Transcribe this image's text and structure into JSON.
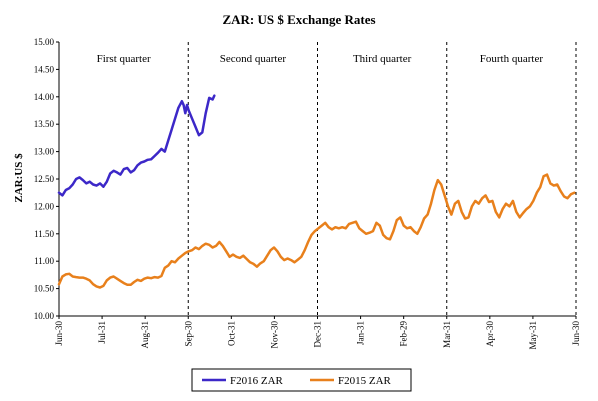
{
  "chart_data": {
    "type": "line",
    "title": "ZAR: US $ Exchange Rates",
    "xlabel": "",
    "ylabel": "ZAR:US $",
    "ylim": [
      10.0,
      15.0
    ],
    "yticks": [
      "10.00",
      "10.50",
      "11.00",
      "11.50",
      "12.00",
      "12.50",
      "13.00",
      "13.50",
      "14.00",
      "14.50",
      "15.00"
    ],
    "xticks": [
      "Jun-30",
      "Jul-31",
      "Aug-31",
      "Sep-30",
      "Oct-31",
      "Nov-30",
      "Dec-31",
      "Jan-31",
      "Feb-29",
      "Mar-31",
      "Apr-30",
      "May-31",
      "Jun-30"
    ],
    "grid": false,
    "legend_position": "bottom-center",
    "quarters": [
      "First quarter",
      "Second quarter",
      "Third quarter",
      "Fourth quarter"
    ],
    "series": [
      {
        "name": "F2016 ZAR",
        "color": "#3c28c8",
        "points": [
          [
            0,
            12.25
          ],
          [
            2,
            12.2
          ],
          [
            4,
            12.3
          ],
          [
            6,
            12.33
          ],
          [
            8,
            12.4
          ],
          [
            10,
            12.5
          ],
          [
            12,
            12.53
          ],
          [
            14,
            12.48
          ],
          [
            16,
            12.42
          ],
          [
            18,
            12.45
          ],
          [
            20,
            12.4
          ],
          [
            22,
            12.38
          ],
          [
            24,
            12.42
          ],
          [
            26,
            12.36
          ],
          [
            28,
            12.45
          ],
          [
            30,
            12.6
          ],
          [
            32,
            12.65
          ],
          [
            34,
            12.62
          ],
          [
            36,
            12.58
          ],
          [
            38,
            12.68
          ],
          [
            40,
            12.7
          ],
          [
            42,
            12.62
          ],
          [
            44,
            12.66
          ],
          [
            46,
            12.75
          ],
          [
            48,
            12.8
          ],
          [
            50,
            12.82
          ],
          [
            52,
            12.85
          ],
          [
            54,
            12.86
          ],
          [
            56,
            12.92
          ],
          [
            58,
            12.98
          ],
          [
            60,
            13.05
          ],
          [
            62,
            13.0
          ],
          [
            64,
            13.2
          ],
          [
            66,
            13.4
          ],
          [
            68,
            13.6
          ],
          [
            70,
            13.8
          ],
          [
            72,
            13.92
          ],
          [
            73,
            13.85
          ],
          [
            74,
            13.7
          ],
          [
            75,
            13.85
          ],
          [
            76,
            13.75
          ],
          [
            78,
            13.6
          ],
          [
            80,
            13.45
          ],
          [
            82,
            13.3
          ],
          [
            84,
            13.35
          ],
          [
            86,
            13.7
          ],
          [
            88,
            13.98
          ],
          [
            90,
            13.95
          ],
          [
            91,
            14.02
          ]
        ]
      },
      {
        "name": "F2015 ZAR",
        "color": "#e8801c",
        "points": [
          [
            0,
            10.58
          ],
          [
            2,
            10.72
          ],
          [
            4,
            10.76
          ],
          [
            6,
            10.77
          ],
          [
            8,
            10.72
          ],
          [
            10,
            10.71
          ],
          [
            12,
            10.7
          ],
          [
            14,
            10.7
          ],
          [
            16,
            10.68
          ],
          [
            18,
            10.65
          ],
          [
            20,
            10.58
          ],
          [
            22,
            10.54
          ],
          [
            24,
            10.52
          ],
          [
            26,
            10.55
          ],
          [
            28,
            10.65
          ],
          [
            30,
            10.7
          ],
          [
            32,
            10.72
          ],
          [
            34,
            10.68
          ],
          [
            36,
            10.64
          ],
          [
            38,
            10.6
          ],
          [
            40,
            10.57
          ],
          [
            42,
            10.57
          ],
          [
            44,
            10.62
          ],
          [
            46,
            10.66
          ],
          [
            48,
            10.64
          ],
          [
            50,
            10.68
          ],
          [
            52,
            10.7
          ],
          [
            54,
            10.69
          ],
          [
            56,
            10.71
          ],
          [
            58,
            10.7
          ],
          [
            60,
            10.73
          ],
          [
            62,
            10.88
          ],
          [
            64,
            10.92
          ],
          [
            66,
            11.0
          ],
          [
            68,
            10.98
          ],
          [
            70,
            11.05
          ],
          [
            72,
            11.1
          ],
          [
            74,
            11.15
          ],
          [
            76,
            11.18
          ],
          [
            78,
            11.2
          ],
          [
            80,
            11.25
          ],
          [
            82,
            11.22
          ],
          [
            84,
            11.28
          ],
          [
            86,
            11.32
          ],
          [
            88,
            11.3
          ],
          [
            90,
            11.25
          ],
          [
            92,
            11.28
          ],
          [
            94,
            11.35
          ],
          [
            96,
            11.28
          ],
          [
            98,
            11.18
          ],
          [
            100,
            11.08
          ],
          [
            102,
            11.12
          ],
          [
            104,
            11.08
          ],
          [
            106,
            11.06
          ],
          [
            108,
            11.1
          ],
          [
            110,
            11.04
          ],
          [
            112,
            10.98
          ],
          [
            114,
            10.95
          ],
          [
            116,
            10.9
          ],
          [
            118,
            10.96
          ],
          [
            120,
            11.0
          ],
          [
            122,
            11.1
          ],
          [
            124,
            11.2
          ],
          [
            126,
            11.25
          ],
          [
            128,
            11.18
          ],
          [
            130,
            11.08
          ],
          [
            132,
            11.02
          ],
          [
            134,
            11.05
          ],
          [
            136,
            11.02
          ],
          [
            138,
            10.98
          ],
          [
            140,
            11.03
          ],
          [
            142,
            11.08
          ],
          [
            144,
            11.2
          ],
          [
            146,
            11.35
          ],
          [
            148,
            11.48
          ],
          [
            150,
            11.55
          ],
          [
            152,
            11.6
          ],
          [
            154,
            11.65
          ],
          [
            156,
            11.7
          ],
          [
            158,
            11.62
          ],
          [
            160,
            11.58
          ],
          [
            162,
            11.62
          ],
          [
            164,
            11.6
          ],
          [
            166,
            11.62
          ],
          [
            168,
            11.6
          ],
          [
            170,
            11.68
          ],
          [
            172,
            11.7
          ],
          [
            174,
            11.72
          ],
          [
            176,
            11.6
          ],
          [
            178,
            11.55
          ],
          [
            180,
            11.5
          ],
          [
            182,
            11.52
          ],
          [
            184,
            11.55
          ],
          [
            186,
            11.7
          ],
          [
            188,
            11.65
          ],
          [
            190,
            11.48
          ],
          [
            192,
            11.42
          ],
          [
            194,
            11.4
          ],
          [
            196,
            11.55
          ],
          [
            198,
            11.75
          ],
          [
            200,
            11.8
          ],
          [
            202,
            11.65
          ],
          [
            204,
            11.6
          ],
          [
            206,
            11.62
          ],
          [
            208,
            11.55
          ],
          [
            210,
            11.5
          ],
          [
            212,
            11.62
          ],
          [
            214,
            11.78
          ],
          [
            216,
            11.85
          ],
          [
            218,
            12.05
          ],
          [
            220,
            12.3
          ],
          [
            222,
            12.48
          ],
          [
            224,
            12.4
          ],
          [
            226,
            12.2
          ],
          [
            228,
            12.0
          ],
          [
            230,
            11.85
          ],
          [
            232,
            12.05
          ],
          [
            234,
            12.1
          ],
          [
            236,
            11.9
          ],
          [
            238,
            11.78
          ],
          [
            240,
            11.8
          ],
          [
            242,
            12.0
          ],
          [
            244,
            12.1
          ],
          [
            246,
            12.05
          ],
          [
            248,
            12.15
          ],
          [
            250,
            12.2
          ],
          [
            252,
            12.08
          ],
          [
            254,
            12.1
          ],
          [
            256,
            11.9
          ],
          [
            258,
            11.8
          ],
          [
            260,
            11.95
          ],
          [
            262,
            12.05
          ],
          [
            264,
            12.0
          ],
          [
            266,
            12.1
          ],
          [
            268,
            11.9
          ],
          [
            270,
            11.8
          ],
          [
            272,
            11.88
          ],
          [
            274,
            11.95
          ],
          [
            276,
            12.0
          ],
          [
            278,
            12.1
          ],
          [
            280,
            12.25
          ],
          [
            282,
            12.35
          ],
          [
            284,
            12.55
          ],
          [
            286,
            12.58
          ],
          [
            288,
            12.42
          ],
          [
            290,
            12.38
          ],
          [
            292,
            12.4
          ],
          [
            294,
            12.28
          ],
          [
            296,
            12.18
          ],
          [
            298,
            12.15
          ],
          [
            300,
            12.22
          ],
          [
            302,
            12.25
          ]
        ]
      }
    ]
  }
}
